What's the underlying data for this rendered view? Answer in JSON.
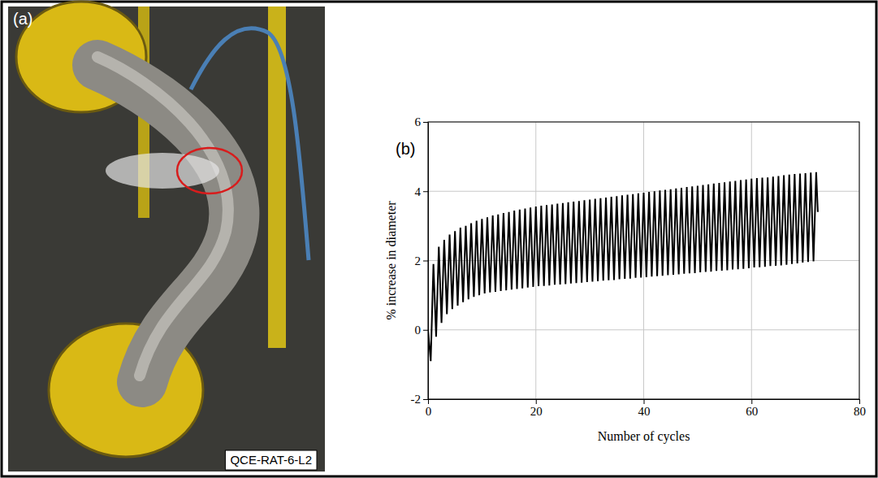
{
  "panel_a": {
    "label": "(a)",
    "caption": "QCE-RAT-6-L2"
  },
  "chart_data": {
    "type": "line",
    "annotations": [
      "(b)"
    ],
    "x_label": "Number of cycles",
    "y_label": "% increase in diameter",
    "xlim": [
      0,
      80
    ],
    "ylim": [
      -2,
      6
    ],
    "xticks": [
      0,
      20,
      40,
      60,
      80
    ],
    "yticks": [
      -2,
      0,
      2,
      4,
      6
    ],
    "grid": true,
    "x": [
      0,
      0.5,
      1,
      1.5,
      2,
      2.5,
      3,
      3.5,
      4,
      4.5,
      5,
      5.5,
      6,
      6.5,
      7,
      7.5,
      8,
      8.5,
      9,
      9.5,
      10,
      10.5,
      11,
      11.5,
      12,
      12.5,
      13,
      13.5,
      14,
      14.5,
      15,
      15.5,
      16,
      16.5,
      17,
      17.5,
      18,
      18.5,
      19,
      19.5,
      20,
      20.5,
      21,
      21.5,
      22,
      22.5,
      23,
      23.5,
      24,
      24.5,
      25,
      25.5,
      26,
      26.5,
      27,
      27.5,
      28,
      28.5,
      29,
      29.5,
      30,
      30.5,
      31,
      31.5,
      32,
      32.5,
      33,
      33.5,
      34,
      34.5,
      35,
      35.5,
      36,
      36.5,
      37,
      37.5,
      38,
      38.5,
      39,
      39.5,
      40,
      40.5,
      41,
      41.5,
      42,
      42.5,
      43,
      43.5,
      44,
      44.5,
      45,
      45.5,
      46,
      46.5,
      47,
      47.5,
      48,
      48.5,
      49,
      49.5,
      50,
      50.5,
      51,
      51.5,
      52,
      52.5,
      53,
      53.5,
      54,
      54.5,
      55,
      55.5,
      56,
      56.5,
      57,
      57.5,
      58,
      58.5,
      59,
      59.5,
      60,
      60.5,
      61,
      61.5,
      62,
      62.5,
      63,
      63.5,
      64,
      64.5,
      65,
      65.5,
      66,
      66.5,
      67,
      67.5,
      68,
      68.5,
      69,
      69.5,
      70,
      70.5,
      71,
      71.5,
      72,
      72.3
    ],
    "series": [
      {
        "color": "#000000",
        "values": [
          0,
          -0.9,
          1.9,
          -0.2,
          2.4,
          0.2,
          2.6,
          0.45,
          2.75,
          0.6,
          2.85,
          0.7,
          2.95,
          0.8,
          3.0,
          0.88,
          3.08,
          0.95,
          3.15,
          1.0,
          3.2,
          1.05,
          3.25,
          1.08,
          3.3,
          1.1,
          3.33,
          1.12,
          3.37,
          1.14,
          3.4,
          1.16,
          3.44,
          1.18,
          3.47,
          1.2,
          3.5,
          1.22,
          3.53,
          1.24,
          3.56,
          1.26,
          3.58,
          1.27,
          3.6,
          1.28,
          3.62,
          1.3,
          3.64,
          1.31,
          3.66,
          1.32,
          3.68,
          1.34,
          3.7,
          1.35,
          3.72,
          1.36,
          3.74,
          1.38,
          3.76,
          1.39,
          3.78,
          1.4,
          3.8,
          1.42,
          3.82,
          1.43,
          3.84,
          1.44,
          3.86,
          1.46,
          3.88,
          1.47,
          3.9,
          1.48,
          3.92,
          1.5,
          3.94,
          1.51,
          3.96,
          1.52,
          3.98,
          1.54,
          4.0,
          1.55,
          4.02,
          1.56,
          4.04,
          1.58,
          4.06,
          1.59,
          4.08,
          1.6,
          4.1,
          1.62,
          4.12,
          1.63,
          4.14,
          1.64,
          4.16,
          1.66,
          4.18,
          1.67,
          4.2,
          1.68,
          4.22,
          1.7,
          4.24,
          1.71,
          4.26,
          1.72,
          4.28,
          1.74,
          4.3,
          1.75,
          4.32,
          1.76,
          4.34,
          1.78,
          4.36,
          1.8,
          4.38,
          1.81,
          4.39,
          1.82,
          4.4,
          1.84,
          4.42,
          1.85,
          4.44,
          1.86,
          4.46,
          1.88,
          4.48,
          1.9,
          4.5,
          1.92,
          4.51,
          1.94,
          4.52,
          1.96,
          4.54,
          1.98,
          4.55,
          3.4
        ]
      }
    ]
  }
}
